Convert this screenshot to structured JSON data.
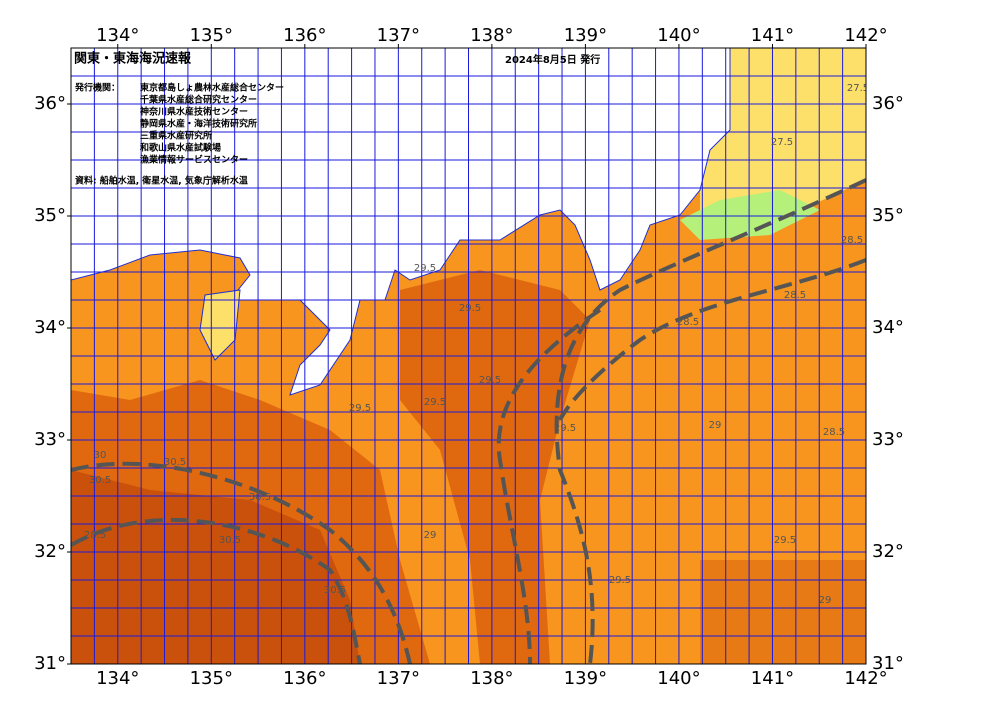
{
  "header": {
    "title": "関東・東海海況速報",
    "issued": "2024年8月5日 発行"
  },
  "credits": {
    "label": "発行機関：",
    "organizations": [
      "東京都島しょ農林水産総合センター",
      "千葉県水産総合研究センター",
      "神奈川県水産技術センター",
      "静岡県水産・海洋技術研究所",
      "三重県水産研究所",
      "和歌山県水産試験場",
      "漁業情報サービスセンター"
    ]
  },
  "source": "資料: 船舶水温, 衛星水温, 気象庁解析水温",
  "map": {
    "xlim": [
      133.5,
      142
    ],
    "ylim": [
      31,
      36.5
    ],
    "grid_step": 0.25,
    "xticks": [
      {
        "value": 134,
        "label": "134°"
      },
      {
        "value": 135,
        "label": "135°"
      },
      {
        "value": 136,
        "label": "136°"
      },
      {
        "value": 137,
        "label": "137°"
      },
      {
        "value": 138,
        "label": "138°"
      },
      {
        "value": 139,
        "label": "139°"
      },
      {
        "value": 140,
        "label": "140°"
      },
      {
        "value": 141,
        "label": "141°"
      },
      {
        "value": 142,
        "label": "142°"
      }
    ],
    "yticks": [
      {
        "value": 31,
        "label": "31°"
      },
      {
        "value": 32,
        "label": "32°"
      },
      {
        "value": 33,
        "label": "33°"
      },
      {
        "value": 34,
        "label": "34°"
      },
      {
        "value": 35,
        "label": "35°"
      },
      {
        "value": 36,
        "label": "36°"
      }
    ],
    "contour_labels": [
      "27.5",
      "27.5",
      "28.5",
      "28.5",
      "28.5",
      "28.5",
      "29.5",
      "29.5",
      "29.5",
      "29.5",
      "29.5",
      "29.5",
      "29",
      "29",
      "30",
      "30.5",
      "30.5",
      "30.5",
      "30.5",
      "28.5",
      "29.5",
      "29.5",
      "30.5",
      "29"
    ]
  }
}
